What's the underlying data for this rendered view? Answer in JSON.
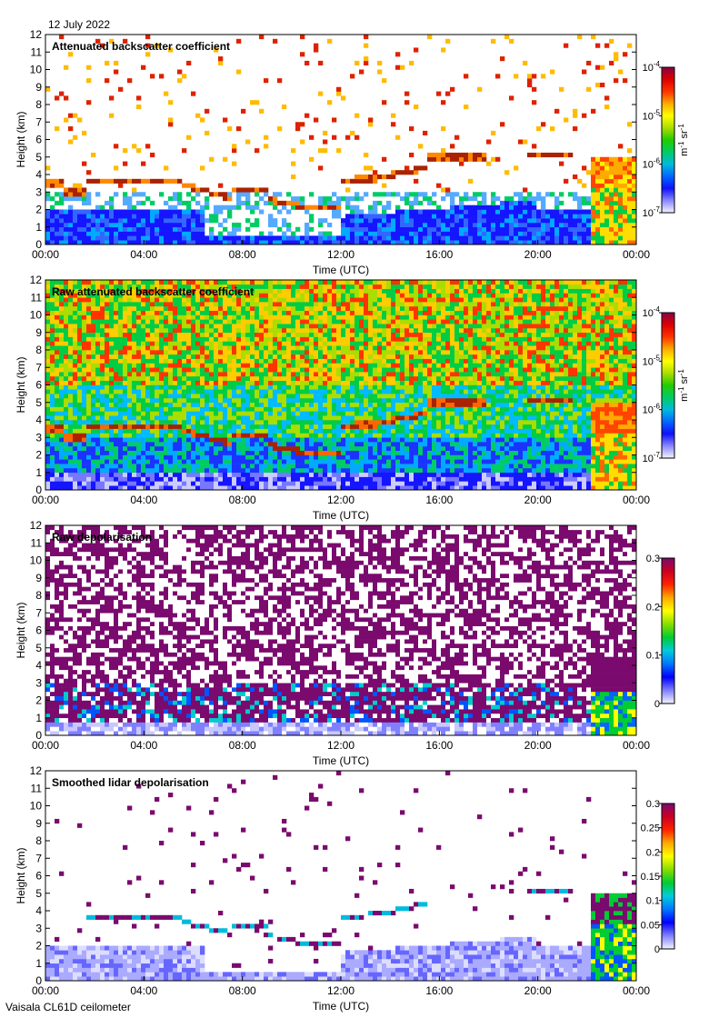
{
  "date_label": "12 July 2022",
  "instrument_label": "Vaisala CL61D ceilometer",
  "palette": [
    "#ffffff",
    "#5050ff",
    "#0000dd",
    "#00aaff",
    "#00dd88",
    "#00cc00",
    "#aadd00",
    "#ffff00",
    "#ffaa00",
    "#ff0000",
    "#aa0044",
    "#7a0a6e"
  ],
  "chart_data": [
    {
      "type": "heatmap",
      "title": "Attenuated backscatter coefficient",
      "xlabel": "Time (UTC)",
      "ylabel": "Height (km)",
      "x_ticks": [
        "00:00",
        "04:00",
        "08:00",
        "12:00",
        "16:00",
        "20:00",
        "00:00"
      ],
      "y_ticks": [
        "0",
        "1",
        "2",
        "3",
        "4",
        "5",
        "6",
        "7",
        "8",
        "9",
        "10",
        "11",
        "12"
      ],
      "ylim": [
        0,
        12
      ],
      "xlim_hours": [
        0,
        24
      ],
      "colorbar": {
        "ticks": [
          {
            "label": "10",
            "exp": "-4",
            "value": -4
          },
          {
            "label": "10",
            "exp": "-5",
            "value": -5
          },
          {
            "label": "10",
            "exp": "-6",
            "value": -6
          },
          {
            "label": "10",
            "exp": "-7",
            "value": -7
          }
        ],
        "range": [
          -7,
          -4
        ],
        "unit": "m",
        "unit_exp1": "-1",
        "unit_mid": " sr",
        "unit_exp2": "-1"
      }
    },
    {
      "type": "heatmap",
      "title": "Raw attenuated backscatter coefficient",
      "xlabel": "Time (UTC)",
      "ylabel": "Height (km)",
      "x_ticks": [
        "00:00",
        "04:00",
        "08:00",
        "12:00",
        "16:00",
        "20:00",
        "00:00"
      ],
      "y_ticks": [
        "0",
        "1",
        "2",
        "3",
        "4",
        "5",
        "6",
        "7",
        "8",
        "9",
        "10",
        "11",
        "12"
      ],
      "ylim": [
        0,
        12
      ],
      "xlim_hours": [
        0,
        24
      ],
      "colorbar": {
        "ticks": [
          {
            "label": "10",
            "exp": "-4",
            "value": -4
          },
          {
            "label": "10",
            "exp": "-5",
            "value": -5
          },
          {
            "label": "10",
            "exp": "-6",
            "value": -6
          },
          {
            "label": "10",
            "exp": "-7",
            "value": -7
          }
        ],
        "range": [
          -7,
          -4
        ],
        "unit": "m",
        "unit_exp1": "-1",
        "unit_mid": " sr",
        "unit_exp2": "-1"
      }
    },
    {
      "type": "heatmap",
      "title": "Raw depolarisation",
      "xlabel": "Time (UTC)",
      "ylabel": "Height (km)",
      "x_ticks": [
        "00:00",
        "04:00",
        "08:00",
        "12:00",
        "16:00",
        "20:00",
        "00:00"
      ],
      "y_ticks": [
        "0",
        "1",
        "2",
        "3",
        "4",
        "5",
        "6",
        "7",
        "8",
        "9",
        "10",
        "11",
        "12"
      ],
      "ylim": [
        0,
        12
      ],
      "xlim_hours": [
        0,
        24
      ],
      "colorbar": {
        "ticks": [
          {
            "label": "0.3",
            "value": 0.3
          },
          {
            "label": "0.2",
            "value": 0.2
          },
          {
            "label": "0.1",
            "value": 0.1
          },
          {
            "label": "0",
            "value": 0
          }
        ],
        "range": [
          0,
          0.3
        ]
      }
    },
    {
      "type": "heatmap",
      "title": "Smoothed lidar depolarisation",
      "xlabel": "Time (UTC)",
      "ylabel": "Height (km)",
      "x_ticks": [
        "00:00",
        "04:00",
        "08:00",
        "12:00",
        "16:00",
        "20:00",
        "00:00"
      ],
      "y_ticks": [
        "0",
        "1",
        "2",
        "3",
        "4",
        "5",
        "6",
        "7",
        "8",
        "9",
        "10",
        "11",
        "12"
      ],
      "ylim": [
        0,
        12
      ],
      "xlim_hours": [
        0,
        24
      ],
      "colorbar": {
        "ticks": [
          {
            "label": "0.3",
            "value": 0.3
          },
          {
            "label": "0.25",
            "value": 0.25
          },
          {
            "label": "0.2",
            "value": 0.2
          },
          {
            "label": "0.15",
            "value": 0.15
          },
          {
            "label": "0.1",
            "value": 0.1
          },
          {
            "label": "0.05",
            "value": 0.05
          },
          {
            "label": "0",
            "value": 0
          }
        ],
        "range": [
          0,
          0.3
        ]
      }
    }
  ]
}
